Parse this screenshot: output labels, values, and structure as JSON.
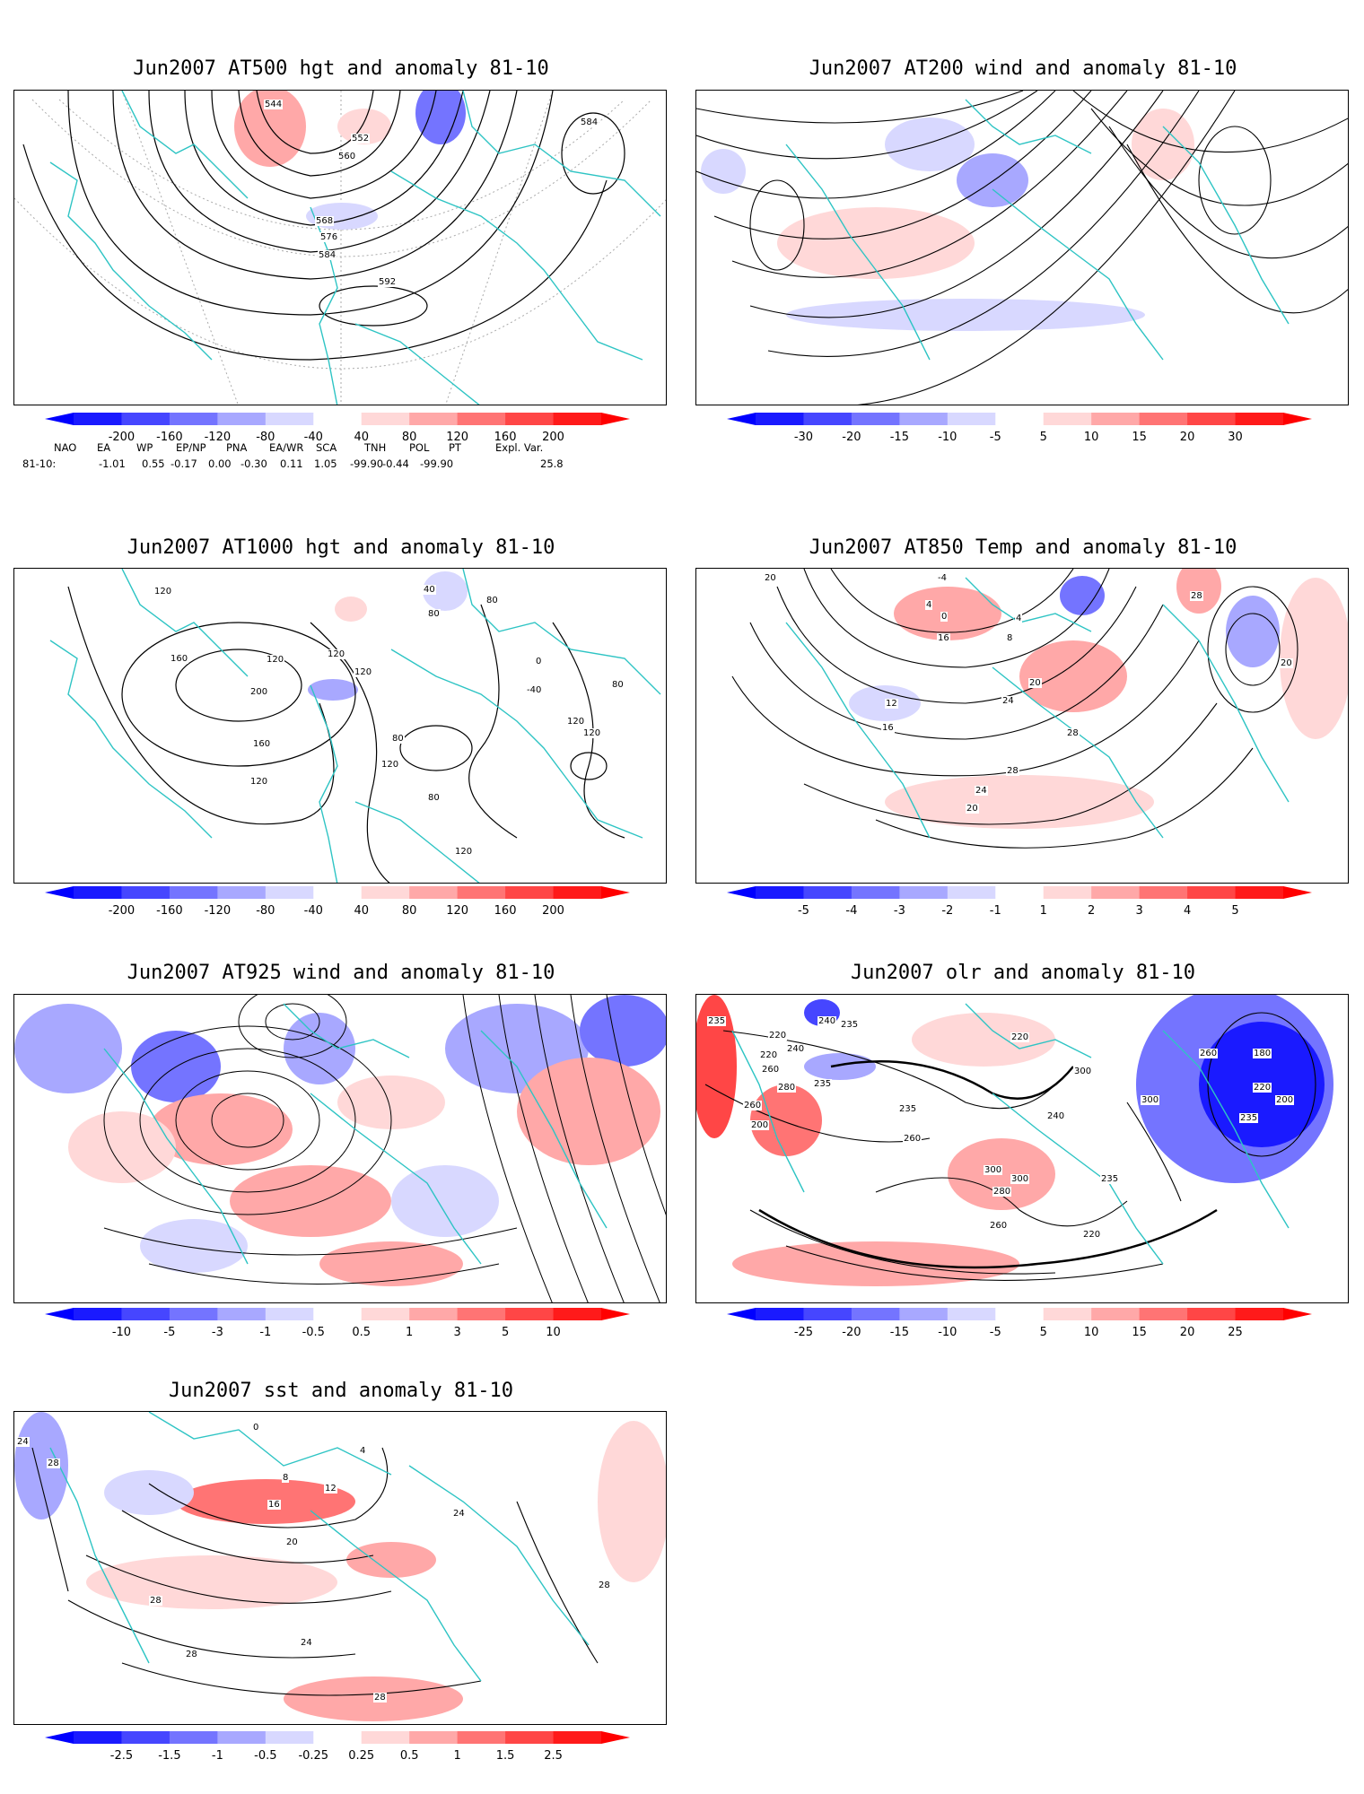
{
  "panels": [
    {
      "title": "Jun2007 AT500 hgt and anomaly 81-10",
      "colorbar": [
        "-200",
        "-160",
        "-120",
        "-80",
        "-40",
        "40",
        "80",
        "120",
        "160",
        "200"
      ],
      "contour_labels": [
        "544",
        "552",
        "560",
        "568",
        "576",
        "584",
        "592",
        "584"
      ]
    },
    {
      "title": "Jun2007 AT200 wind and anomaly 81-10",
      "colorbar": [
        "-30",
        "-20",
        "-15",
        "-10",
        "-5",
        "5",
        "10",
        "15",
        "20",
        "30"
      ],
      "contour_labels": []
    },
    {
      "title": "Jun2007 AT1000 hgt and anomaly 81-10",
      "colorbar": [
        "-200",
        "-160",
        "-120",
        "-80",
        "-40",
        "40",
        "80",
        "120",
        "160",
        "200"
      ],
      "contour_labels": [
        "120",
        "160",
        "200",
        "120",
        "120",
        "80",
        "120",
        "40",
        "80",
        "0",
        "-40",
        "80",
        "120",
        "160",
        "120",
        "80",
        "80",
        "120",
        "120",
        "120"
      ]
    },
    {
      "title": "Jun2007 AT850 Temp and anomaly 81-10",
      "colorbar": [
        "-5",
        "-4",
        "-3",
        "-2",
        "-1",
        "1",
        "2",
        "3",
        "4",
        "5"
      ],
      "contour_labels": [
        "20",
        "-4",
        "4",
        "0",
        "4",
        "8",
        "16",
        "12",
        "16",
        "20",
        "24",
        "28",
        "28",
        "24",
        "20",
        "20",
        "28"
      ]
    },
    {
      "title": "Jun2007 AT925 wind and anomaly 81-10",
      "colorbar": [
        "-10",
        "-5",
        "-3",
        "-1",
        "-0.5",
        "0.5",
        "1",
        "3",
        "5",
        "10"
      ],
      "contour_labels": []
    },
    {
      "title": "Jun2007 olr and anomaly 81-10",
      "colorbar": [
        "-25",
        "-20",
        "-15",
        "-10",
        "-5",
        "5",
        "10",
        "15",
        "20",
        "25"
      ],
      "contour_labels": [
        "235",
        "220",
        "240",
        "235",
        "220",
        "260",
        "235",
        "280",
        "260",
        "200",
        "240",
        "235",
        "260",
        "300",
        "300",
        "280",
        "260",
        "300",
        "220",
        "180",
        "200",
        "220",
        "235",
        "260",
        "300",
        "240",
        "220",
        "235"
      ]
    },
    {
      "title": "Jun2007 sst and anomaly 81-10",
      "colorbar": [
        "-2.5",
        "-1.5",
        "-1",
        "-0.5",
        "-0.25",
        "0.25",
        "0.5",
        "1",
        "1.5",
        "2.5"
      ],
      "contour_labels": [
        "24",
        "28",
        "0",
        "4",
        "8",
        "12",
        "16",
        "20",
        "24",
        "28",
        "28",
        "28",
        "24",
        "28"
      ]
    }
  ],
  "teleconnection": {
    "header": [
      "NAO",
      "EA",
      "WP",
      "EP/NP",
      "PNA",
      "EA/WR",
      "SCA",
      "TNH",
      "POL",
      "PT",
      "Expl. Var."
    ],
    "row_label": "81-10:",
    "values": [
      "-1.01",
      "0.55",
      "-0.17",
      "0.00",
      "-0.30",
      "0.11",
      "1.05",
      "-99.90",
      "-0.44",
      "-99.90",
      "25.8"
    ]
  },
  "colors": {
    "coast": "#2ec4c4",
    "neg": [
      "#1a1aff",
      "#4646ff",
      "#7474ff",
      "#a8a8ff",
      "#d8d8ff"
    ],
    "pos": [
      "#ffd8d8",
      "#ffa8a8",
      "#ff7474",
      "#ff4646",
      "#ff1a1a"
    ]
  }
}
